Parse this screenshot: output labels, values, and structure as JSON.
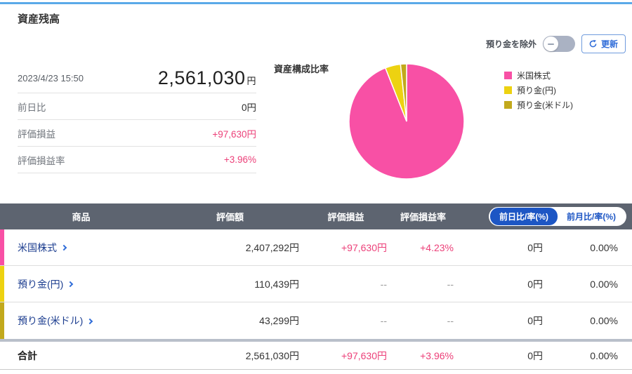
{
  "page": {
    "title": "資産残高"
  },
  "controls": {
    "toggle_label": "預り金を除外",
    "toggle_state": "off",
    "refresh_label": "更新"
  },
  "summary": {
    "timestamp": "2023/4/23 15:50",
    "total_value": "2,561,030",
    "total_unit": "円",
    "rows": [
      {
        "label": "前日比",
        "value": "0円"
      },
      {
        "label": "評価損益",
        "value": "+97,630円"
      },
      {
        "label": "評価損益率",
        "value": "+3.96%"
      }
    ]
  },
  "chart_data": {
    "type": "pie",
    "title": "資産構成比率",
    "labels": [
      "米国株式",
      "預り金(円)",
      "預り金(米ドル)"
    ],
    "values": [
      2407292,
      110439,
      43299
    ],
    "percentages": [
      94.0,
      4.31,
      1.69
    ],
    "colors": [
      "#f850a5",
      "#edd211",
      "#c2a91c"
    ],
    "legend_position": "right",
    "start_angle_deg": 90,
    "direction": "clockwise"
  },
  "table": {
    "headers": [
      "商品",
      "評価額",
      "評価損益",
      "評価損益率"
    ],
    "toggle_tabs": {
      "options": [
        "前日比/率(%)",
        "前月比/率(%)"
      ],
      "selected": 0
    },
    "rows": [
      {
        "name": "米国株式",
        "marker_color": "#f850a5",
        "value": "2,407,292円",
        "pl": "+97,630円",
        "pl_rate": "+4.23%",
        "pl_color": "pink",
        "day_change": "0円",
        "day_rate": "0.00%"
      },
      {
        "name": "預り金(円)",
        "marker_color": "#edd211",
        "value": "110,439円",
        "pl": "--",
        "pl_rate": "--",
        "pl_color": "muted",
        "day_change": "0円",
        "day_rate": "0.00%"
      },
      {
        "name": "預り金(米ドル)",
        "marker_color": "#c2a91c",
        "value": "43,299円",
        "pl": "--",
        "pl_rate": "--",
        "pl_color": "muted",
        "day_change": "0円",
        "day_rate": "0.00%"
      }
    ],
    "total_row": {
      "name": "合計",
      "value": "2,561,030円",
      "pl": "+97,630円",
      "pl_rate": "+3.96%",
      "pl_color": "pink",
      "day_change": "0円",
      "day_rate": "0.00%"
    }
  },
  "colors": {
    "accent_line": "#5aa9e8",
    "gain_text": "#ec4079",
    "link_blue": "#1c3d8f",
    "chevron_blue": "#2f6cd8",
    "header_bg": "#5d6470",
    "pill_blue": "#1d56c4",
    "toggle_track": "#aab2c3",
    "thick_divider": "#b9bfca"
  }
}
